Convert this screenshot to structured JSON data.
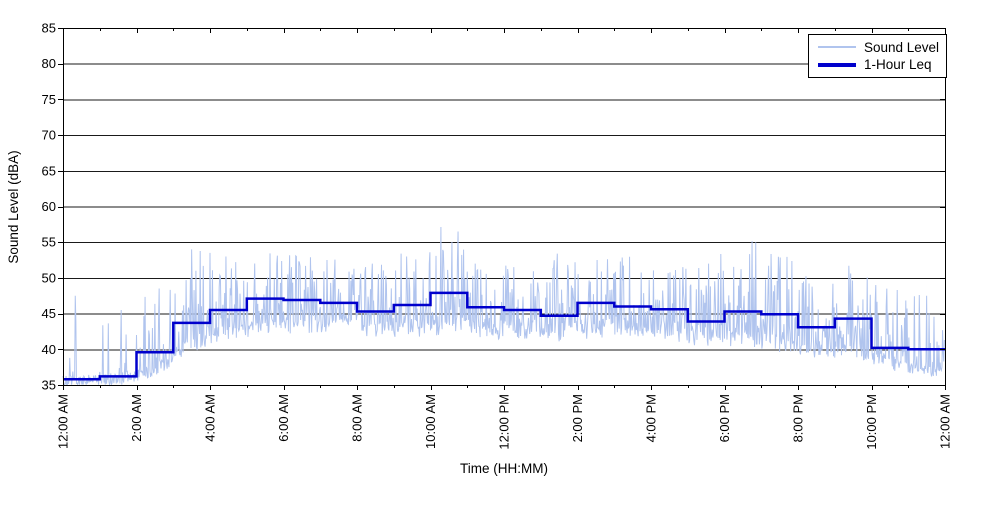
{
  "chart_data": {
    "type": "line",
    "xlabel": "Time (HH:MM)",
    "ylabel": "Sound Level (dBA)",
    "ylim": [
      35,
      85
    ],
    "xlim_hours": [
      0,
      24
    ],
    "y_ticks": [
      35,
      40,
      45,
      50,
      55,
      60,
      65,
      70,
      75,
      80,
      85
    ],
    "x_tick_hours": [
      0,
      2,
      4,
      6,
      8,
      10,
      12,
      14,
      16,
      18,
      20,
      22,
      24
    ],
    "x_tick_labels": [
      "12:00 AM",
      "2:00 AM",
      "4:00 AM",
      "6:00 AM",
      "8:00 AM",
      "10:00 AM",
      "12:00 PM",
      "2:00 PM",
      "4:00 PM",
      "6:00 PM",
      "8:00 PM",
      "10:00 PM",
      "12:00 AM"
    ],
    "x_minor_tick_every_hours": 1,
    "grid": "horizontal-solid",
    "legend": {
      "position": "top-right",
      "entries": [
        {
          "label": "Sound Level",
          "color": "#b0c4ee",
          "weight": "thin"
        },
        {
          "label": "1-Hour Leq",
          "color": "#0000cc",
          "weight": "thick"
        }
      ]
    },
    "colors": {
      "sound_level": "#b0c4ee",
      "leq": "#0000cc",
      "axis": "#000000",
      "grid": "#1a1a1a",
      "background": "#ffffff"
    },
    "series": [
      {
        "name": "Sound Level",
        "kind": "noisy-minute-trace",
        "samples_per_hour": 60,
        "hourly_envelope": [
          {
            "hour": 0,
            "base": 35.5,
            "peak": 47.5,
            "density": 0.06,
            "peak_minute": 20
          },
          {
            "hour": 1,
            "base": 35.8,
            "peak": 45.5,
            "density": 0.07
          },
          {
            "hour": 2,
            "base": 37.0,
            "peak": 48.0,
            "density": 0.3
          },
          {
            "hour": 3,
            "base": 40.5,
            "peak": 54.0,
            "density": 0.8,
            "peak_minute": 44
          },
          {
            "hour": 4,
            "base": 42.0,
            "peak": 53.0,
            "density": 0.85
          },
          {
            "hour": 5,
            "base": 43.0,
            "peak": 53.5,
            "density": 0.85,
            "peak_minute": 38
          },
          {
            "hour": 6,
            "base": 43.0,
            "peak": 53.0,
            "density": 0.85
          },
          {
            "hour": 7,
            "base": 43.0,
            "peak": 52.5,
            "density": 0.85
          },
          {
            "hour": 8,
            "base": 42.0,
            "peak": 52.0,
            "density": 0.85
          },
          {
            "hour": 9,
            "base": 42.5,
            "peak": 54.0,
            "density": 0.85
          },
          {
            "hour": 10,
            "base": 43.0,
            "peak": 58.0,
            "density": 0.85,
            "peak_minute": 45
          },
          {
            "hour": 11,
            "base": 42.5,
            "peak": 52.0,
            "density": 0.85
          },
          {
            "hour": 12,
            "base": 42.0,
            "peak": 51.5,
            "density": 0.85
          },
          {
            "hour": 13,
            "base": 42.0,
            "peak": 53.5,
            "density": 0.85
          },
          {
            "hour": 14,
            "base": 42.5,
            "peak": 52.5,
            "density": 0.85
          },
          {
            "hour": 15,
            "base": 42.5,
            "peak": 53.0,
            "density": 0.85
          },
          {
            "hour": 16,
            "base": 42.0,
            "peak": 51.5,
            "density": 0.85
          },
          {
            "hour": 17,
            "base": 41.0,
            "peak": 52.0,
            "density": 0.8
          },
          {
            "hour": 18,
            "base": 41.5,
            "peak": 55.6,
            "density": 0.8,
            "peak_minute": 45
          },
          {
            "hour": 19,
            "base": 40.5,
            "peak": 53.8,
            "density": 0.75,
            "peak_minute": 50
          },
          {
            "hour": 20,
            "base": 39.5,
            "peak": 49.5,
            "density": 0.7
          },
          {
            "hour": 21,
            "base": 39.5,
            "peak": 52.0,
            "density": 0.7
          },
          {
            "hour": 22,
            "base": 38.0,
            "peak": 48.5,
            "density": 0.6
          },
          {
            "hour": 23,
            "base": 37.0,
            "peak": 47.5,
            "density": 0.55
          }
        ],
        "last_sample_value": 41.3
      },
      {
        "name": "1-Hour Leq",
        "kind": "step",
        "hourly_leq": [
          35.8,
          36.2,
          39.6,
          43.7,
          45.5,
          47.1,
          46.9,
          46.5,
          45.3,
          46.2,
          47.9,
          45.9,
          45.5,
          44.7,
          46.5,
          46.0,
          45.6,
          43.9,
          45.3,
          44.9,
          43.1,
          44.3,
          40.2,
          40.0
        ]
      }
    ]
  }
}
